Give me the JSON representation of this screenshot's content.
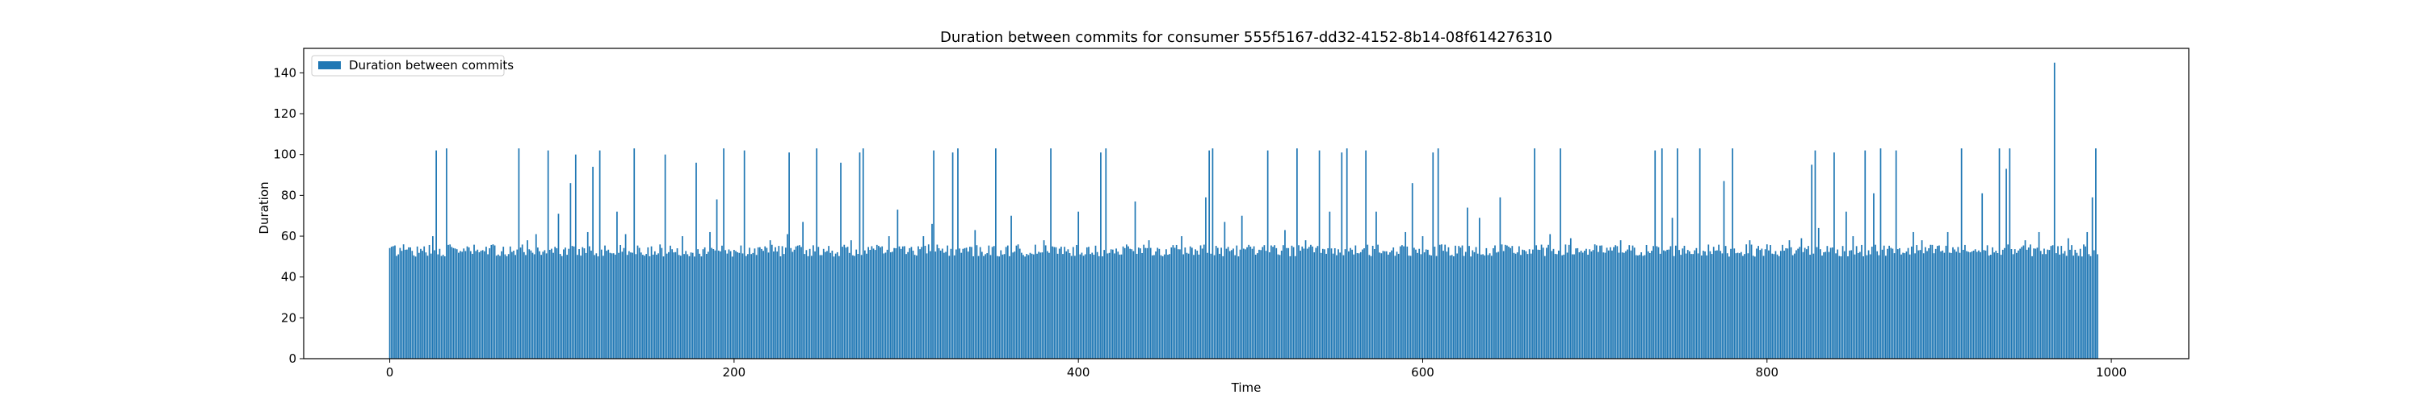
{
  "chart_data": {
    "type": "bar",
    "title": "Duration between commits for consumer 555f5167-dd32-4152-8b14-08f614276310",
    "xlabel": "Time",
    "ylabel": "Duration",
    "xlim": [
      -50,
      1045
    ],
    "ylim": [
      0,
      152
    ],
    "xticks": [
      0,
      200,
      400,
      600,
      800,
      1000
    ],
    "yticks": [
      0,
      20,
      40,
      60,
      80,
      100,
      120,
      140
    ],
    "legend": {
      "location": "top-left",
      "entries": [
        "Duration between commits"
      ]
    },
    "grid": false,
    "colors": {
      "bar": "#1f77b4"
    },
    "series": [
      {
        "name": "Duration between commits",
        "x_start": 0,
        "x_step": 1,
        "count": 993,
        "baseline_range": [
          50,
          56
        ],
        "spikes": [
          [
            8,
            56
          ],
          [
            20,
            55
          ],
          [
            25,
            60
          ],
          [
            27,
            102
          ],
          [
            33,
            103
          ],
          [
            45,
            55
          ],
          [
            60,
            56
          ],
          [
            75,
            103
          ],
          [
            80,
            58
          ],
          [
            85,
            61
          ],
          [
            92,
            102
          ],
          [
            98,
            71
          ],
          [
            105,
            86
          ],
          [
            108,
            100
          ],
          [
            115,
            62
          ],
          [
            118,
            94
          ],
          [
            122,
            102
          ],
          [
            132,
            72
          ],
          [
            137,
            61
          ],
          [
            142,
            103
          ],
          [
            160,
            100
          ],
          [
            170,
            60
          ],
          [
            178,
            96
          ],
          [
            186,
            62
          ],
          [
            190,
            78
          ],
          [
            194,
            103
          ],
          [
            206,
            102
          ],
          [
            221,
            58
          ],
          [
            231,
            61
          ],
          [
            232,
            101
          ],
          [
            240,
            67
          ],
          [
            248,
            103
          ],
          [
            262,
            96
          ],
          [
            268,
            58
          ],
          [
            273,
            101
          ],
          [
            275,
            103
          ],
          [
            290,
            60
          ],
          [
            295,
            73
          ],
          [
            310,
            60
          ],
          [
            315,
            66
          ],
          [
            316,
            102
          ],
          [
            327,
            101
          ],
          [
            330,
            103
          ],
          [
            340,
            63
          ],
          [
            352,
            103
          ],
          [
            361,
            70
          ],
          [
            380,
            58
          ],
          [
            384,
            103
          ],
          [
            400,
            72
          ],
          [
            413,
            101
          ],
          [
            416,
            103
          ],
          [
            433,
            77
          ],
          [
            441,
            58
          ],
          [
            460,
            60
          ],
          [
            474,
            79
          ],
          [
            476,
            102
          ],
          [
            478,
            103
          ],
          [
            485,
            67
          ],
          [
            495,
            70
          ],
          [
            510,
            102
          ],
          [
            520,
            63
          ],
          [
            527,
            103
          ],
          [
            532,
            58
          ],
          [
            540,
            102
          ],
          [
            546,
            72
          ],
          [
            553,
            101
          ],
          [
            556,
            103
          ],
          [
            567,
            102
          ],
          [
            573,
            72
          ],
          [
            590,
            62
          ],
          [
            594,
            86
          ],
          [
            600,
            60
          ],
          [
            606,
            101
          ],
          [
            609,
            103
          ],
          [
            626,
            74
          ],
          [
            633,
            69
          ],
          [
            645,
            79
          ],
          [
            665,
            103
          ],
          [
            674,
            61
          ],
          [
            680,
            103
          ],
          [
            686,
            59
          ],
          [
            700,
            56
          ],
          [
            715,
            58
          ],
          [
            735,
            102
          ],
          [
            739,
            103
          ],
          [
            745,
            69
          ],
          [
            748,
            103
          ],
          [
            761,
            103
          ],
          [
            775,
            87
          ],
          [
            780,
            103
          ],
          [
            790,
            58
          ],
          [
            800,
            56
          ],
          [
            813,
            58
          ],
          [
            820,
            59
          ],
          [
            826,
            95
          ],
          [
            828,
            102
          ],
          [
            830,
            64
          ],
          [
            839,
            101
          ],
          [
            846,
            72
          ],
          [
            850,
            60
          ],
          [
            857,
            102
          ],
          [
            862,
            81
          ],
          [
            866,
            103
          ],
          [
            875,
            102
          ],
          [
            885,
            62
          ],
          [
            890,
            58
          ],
          [
            905,
            62
          ],
          [
            913,
            103
          ],
          [
            925,
            81
          ],
          [
            935,
            103
          ],
          [
            939,
            93
          ],
          [
            941,
            103
          ],
          [
            950,
            58
          ],
          [
            958,
            62
          ],
          [
            967,
            145
          ],
          [
            975,
            59
          ],
          [
            986,
            62
          ],
          [
            989,
            79
          ],
          [
            991,
            103
          ]
        ]
      }
    ]
  }
}
